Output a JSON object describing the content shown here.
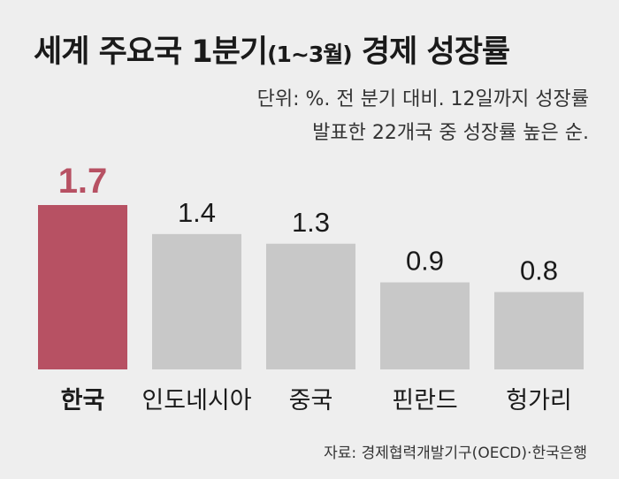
{
  "header": {
    "title_main": "세계 주요국 1분기",
    "title_paren": "(1~3월)",
    "title_tail": "경제 성장률",
    "subtitle_line1": "단위: %. 전 분기 대비. 12일까지 성장률",
    "subtitle_line2": "발표한 22개국 중 성장률 높은 순."
  },
  "footer": {
    "source": "자료: 경제협력개발기구(OECD)·한국은행"
  },
  "colors": {
    "highlight": "#b75163",
    "bar": "#c8c8c8",
    "background": "#eeeeee"
  },
  "chart_data": {
    "type": "bar",
    "categories": [
      "한국",
      "인도네시아",
      "중국",
      "핀란드",
      "헝가리"
    ],
    "values": [
      1.7,
      1.4,
      1.3,
      0.9,
      0.8
    ],
    "highlight_index": 0,
    "ylim": [
      0,
      1.7
    ],
    "grid": false,
    "legend": "none"
  }
}
